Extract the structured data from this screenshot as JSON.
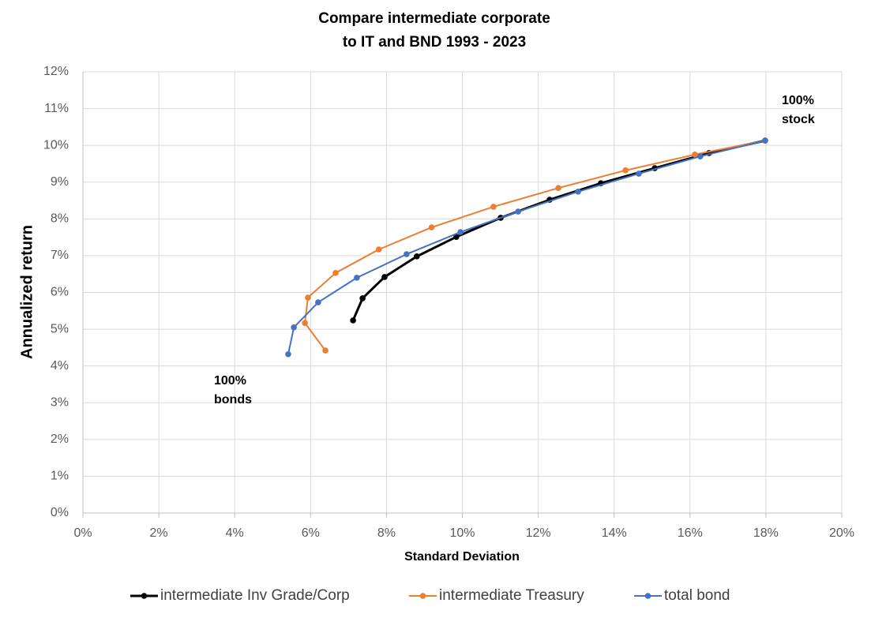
{
  "chart_data": {
    "type": "line",
    "title": [
      "Compare intermediate corporate",
      "to IT and BND 1993 - 2023"
    ],
    "x_label": "Standard Deviation",
    "y_label": "Annualized return",
    "xlim": [
      0,
      20
    ],
    "ylim": [
      0,
      12
    ],
    "xticks": [
      {
        "value": 0,
        "label": "0%"
      },
      {
        "value": 2,
        "label": "2%"
      },
      {
        "value": 4,
        "label": "4%"
      },
      {
        "value": 6,
        "label": "6%"
      },
      {
        "value": 8,
        "label": "8%"
      },
      {
        "value": 10,
        "label": "10%"
      },
      {
        "value": 12,
        "label": "12%"
      },
      {
        "value": 14,
        "label": "14%"
      },
      {
        "value": 16,
        "label": "16%"
      },
      {
        "value": 18,
        "label": "18%"
      },
      {
        "value": 20,
        "label": "20%"
      }
    ],
    "yticks": [
      {
        "value": 0,
        "label": "0%"
      },
      {
        "value": 1,
        "label": "1%"
      },
      {
        "value": 2,
        "label": "2%"
      },
      {
        "value": 3,
        "label": "3%"
      },
      {
        "value": 4,
        "label": "4%"
      },
      {
        "value": 5,
        "label": "5%"
      },
      {
        "value": 6,
        "label": "6%"
      },
      {
        "value": 7,
        "label": "7%"
      },
      {
        "value": 8,
        "label": "8%"
      },
      {
        "value": 9,
        "label": "9%"
      },
      {
        "value": 10,
        "label": "10%"
      },
      {
        "value": 11,
        "label": "11%"
      },
      {
        "value": 12,
        "label": "12%"
      }
    ],
    "grid": true,
    "legend": "bottom",
    "series": [
      {
        "name": "intermediate Inv Grade/Corp",
        "color": "#000000",
        "x": [
          7.12,
          7.37,
          7.95,
          8.8,
          9.84,
          11.01,
          12.3,
          13.65,
          15.07,
          16.5,
          17.98
        ],
        "values": [
          5.24,
          5.84,
          6.42,
          6.98,
          7.51,
          8.03,
          8.52,
          8.97,
          9.38,
          9.79,
          10.13
        ]
      },
      {
        "name": "intermediate Treasury",
        "color": "#ed7d31",
        "x": [
          6.39,
          5.85,
          5.93,
          6.66,
          7.8,
          9.19,
          10.82,
          12.53,
          14.3,
          16.13,
          17.98
        ],
        "values": [
          4.42,
          5.17,
          5.86,
          6.53,
          7.17,
          7.77,
          8.33,
          8.84,
          9.32,
          9.75,
          10.13
        ]
      },
      {
        "name": "total bond",
        "color": "#4472c4",
        "x": [
          5.41,
          5.56,
          6.2,
          7.22,
          8.53,
          9.95,
          11.47,
          13.05,
          14.65,
          16.27,
          17.98
        ],
        "values": [
          4.32,
          5.05,
          5.73,
          6.4,
          7.04,
          7.64,
          8.2,
          8.74,
          9.23,
          9.7,
          10.13
        ]
      }
    ],
    "annotations": [
      {
        "lines": [
          "100%",
          "stock"
        ]
      },
      {
        "lines": [
          "100%",
          "bonds"
        ]
      }
    ]
  }
}
